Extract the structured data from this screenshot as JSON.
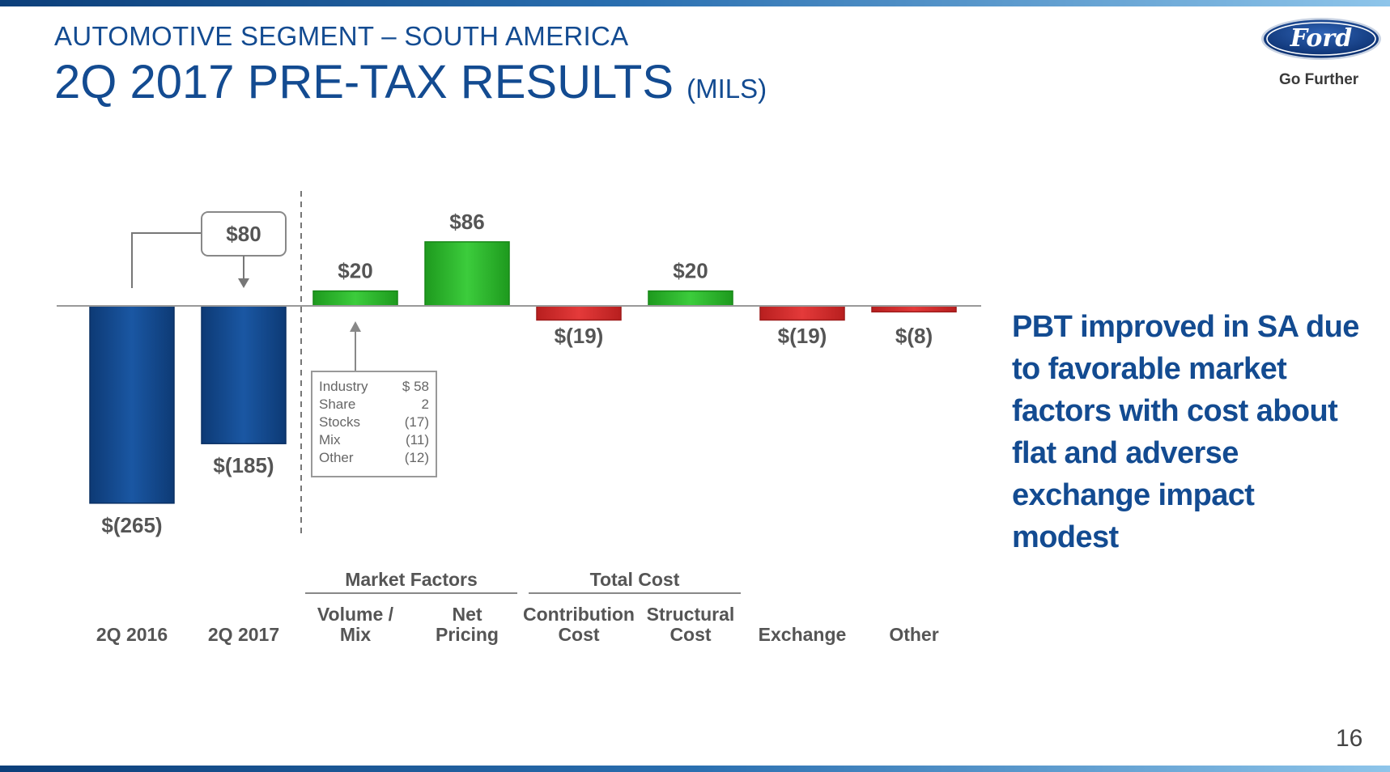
{
  "header": {
    "subtitle": "AUTOMOTIVE SEGMENT – SOUTH AMERICA",
    "title": "2Q 2017 PRE-TAX RESULTS",
    "title_units": "(MILS)"
  },
  "logo": {
    "wordmark": "Ford",
    "tagline": "Go Further",
    "icon": "ford-oval-logo"
  },
  "callout": "PBT improved in SA due to favorable market factors with cost about flat and adverse exchange impact modest",
  "page_number": "16",
  "colors": {
    "title_blue": "#134b91",
    "bar_blue": "#124a8e",
    "positive": "#2fb52f",
    "negative": "#d42a2a",
    "label": "#555555"
  },
  "chart_data": {
    "type": "bar",
    "title": "2Q 2017 PRE-TAX RESULTS (MILS)",
    "categories": [
      "2Q 2016",
      "2Q 2017",
      "Volume / Mix",
      "Net Pricing",
      "Contribution Cost",
      "Structural Cost",
      "Exchange",
      "Other"
    ],
    "category_lines": [
      [
        "2Q 2016"
      ],
      [
        "2Q 2017"
      ],
      [
        "Volume /",
        "Mix"
      ],
      [
        "Net",
        "Pricing"
      ],
      [
        "Contribution",
        "Cost"
      ],
      [
        "Structural",
        "Cost"
      ],
      [
        "Exchange"
      ],
      [
        "Other"
      ]
    ],
    "values": [
      -265,
      -185,
      20,
      86,
      -19,
      20,
      -19,
      -8
    ],
    "kinds": [
      "total",
      "total",
      "change",
      "change",
      "change",
      "change",
      "change",
      "change"
    ],
    "labels": [
      "$(265)",
      "$(185)",
      "$20",
      "$86",
      "$(19)",
      "$20",
      "$(19)",
      "$(8)"
    ],
    "groups": [
      {
        "label": "Market Factors",
        "categories": [
          "Volume / Mix",
          "Net Pricing"
        ]
      },
      {
        "label": "Total Cost",
        "categories": [
          "Contribution Cost",
          "Structural Cost"
        ]
      }
    ],
    "change_annotation": {
      "label": "$80",
      "from": "2Q 2016",
      "to": "2Q 2017"
    },
    "volume_mix_breakdown": [
      {
        "item": "Industry",
        "value": "$ 58"
      },
      {
        "item": "Share",
        "value": "2"
      },
      {
        "item": "Stocks",
        "value": "(17)"
      },
      {
        "item": "Mix",
        "value": "(11)"
      },
      {
        "item": "Other",
        "value": "(12)"
      }
    ],
    "grid": false,
    "legend": "none"
  }
}
